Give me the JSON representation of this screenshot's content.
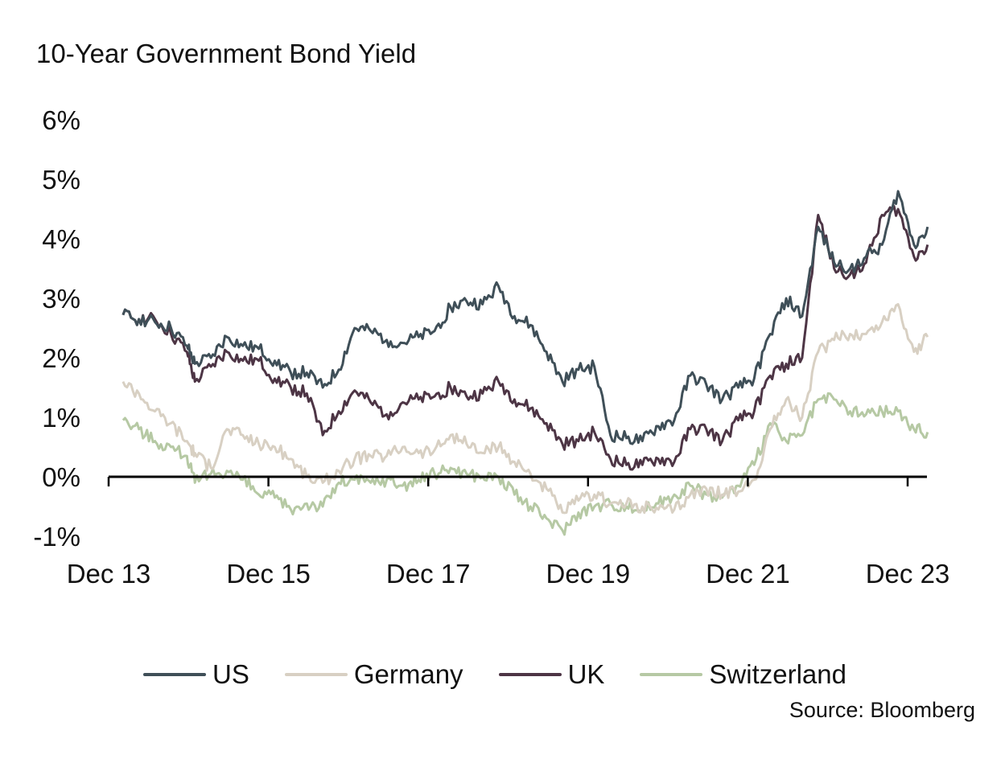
{
  "chart_data": {
    "type": "line",
    "title": "10-Year Government Bond Yield",
    "xlabel": "",
    "ylabel": "",
    "ylim": [
      -1,
      6
    ],
    "yticks": [
      "-1%",
      "0%",
      "1%",
      "2%",
      "3%",
      "4%",
      "5%",
      "6%"
    ],
    "ytick_values": [
      -1,
      0,
      1,
      2,
      3,
      4,
      5,
      6
    ],
    "xticks": [
      "Dec 13",
      "Dec 15",
      "Dec 17",
      "Dec 19",
      "Dec 21",
      "Dec 23"
    ],
    "xtick_values": [
      2013.92,
      2015.92,
      2017.92,
      2019.92,
      2021.92,
      2023.92
    ],
    "xlim": [
      2013.92,
      2024.17
    ],
    "grid": false,
    "legend_position": "bottom",
    "x": [
      2014.1,
      2014.3,
      2014.5,
      2014.7,
      2014.9,
      2015.0,
      2015.2,
      2015.4,
      2015.6,
      2015.8,
      2016.0,
      2016.2,
      2016.4,
      2016.6,
      2016.8,
      2017.0,
      2017.2,
      2017.4,
      2017.6,
      2017.8,
      2018.0,
      2018.2,
      2018.4,
      2018.6,
      2018.8,
      2019.0,
      2019.2,
      2019.4,
      2019.6,
      2019.8,
      2020.0,
      2020.2,
      2020.4,
      2020.6,
      2020.8,
      2021.0,
      2021.2,
      2021.4,
      2021.6,
      2021.8,
      2022.0,
      2022.2,
      2022.4,
      2022.6,
      2022.8,
      2023.0,
      2023.2,
      2023.4,
      2023.6,
      2023.8,
      2024.0,
      2024.17
    ],
    "series": [
      {
        "name": "US",
        "color": "#3f4f58",
        "values": [
          2.72,
          2.65,
          2.6,
          2.5,
          2.2,
          1.9,
          2.0,
          2.35,
          2.2,
          2.15,
          1.95,
          1.75,
          1.75,
          1.5,
          1.8,
          2.5,
          2.45,
          2.3,
          2.25,
          2.35,
          2.45,
          2.85,
          2.95,
          2.9,
          3.2,
          2.7,
          2.55,
          2.1,
          1.6,
          1.8,
          1.85,
          0.7,
          0.65,
          0.6,
          0.85,
          0.95,
          1.7,
          1.55,
          1.3,
          1.5,
          1.65,
          2.4,
          3.0,
          2.7,
          4.2,
          3.6,
          3.5,
          3.7,
          3.9,
          4.8,
          3.9,
          4.2
        ]
      },
      {
        "name": "Germany",
        "color": "#d8d0c3",
        "values": [
          1.6,
          1.4,
          1.1,
          0.9,
          0.6,
          0.4,
          0.15,
          0.8,
          0.7,
          0.55,
          0.5,
          0.3,
          0.0,
          -0.1,
          0.1,
          0.3,
          0.35,
          0.35,
          0.5,
          0.4,
          0.45,
          0.7,
          0.55,
          0.4,
          0.5,
          0.25,
          0.05,
          -0.2,
          -0.6,
          -0.4,
          -0.3,
          -0.45,
          -0.45,
          -0.5,
          -0.55,
          -0.55,
          -0.3,
          -0.2,
          -0.3,
          -0.25,
          -0.05,
          0.8,
          1.3,
          1.0,
          2.1,
          2.3,
          2.4,
          2.4,
          2.6,
          2.9,
          2.1,
          2.35
        ]
      },
      {
        "name": "UK",
        "color": "#4d3545",
        "values": [
          2.72,
          2.65,
          2.65,
          2.4,
          2.1,
          1.6,
          1.85,
          2.1,
          1.95,
          1.95,
          1.65,
          1.5,
          1.4,
          0.7,
          1.1,
          1.45,
          1.25,
          1.05,
          1.25,
          1.3,
          1.35,
          1.5,
          1.35,
          1.4,
          1.6,
          1.3,
          1.15,
          0.9,
          0.55,
          0.6,
          0.75,
          0.3,
          0.2,
          0.2,
          0.3,
          0.25,
          0.8,
          0.8,
          0.6,
          0.95,
          1.1,
          1.7,
          1.9,
          2.0,
          4.4,
          3.5,
          3.4,
          3.6,
          4.4,
          4.5,
          3.7,
          3.9
        ]
      },
      {
        "name": "Switzerland",
        "color": "#b6c9a4",
        "values": [
          0.95,
          0.8,
          0.6,
          0.5,
          0.35,
          -0.1,
          0.05,
          0.1,
          -0.05,
          -0.3,
          -0.35,
          -0.55,
          -0.45,
          -0.5,
          -0.1,
          -0.05,
          -0.1,
          -0.05,
          -0.15,
          -0.05,
          0.05,
          0.15,
          0.05,
          0.0,
          0.0,
          -0.3,
          -0.5,
          -0.7,
          -0.9,
          -0.6,
          -0.5,
          -0.45,
          -0.5,
          -0.55,
          -0.45,
          -0.3,
          -0.15,
          -0.3,
          -0.35,
          -0.15,
          0.2,
          0.9,
          0.6,
          0.7,
          1.3,
          1.3,
          1.1,
          1.05,
          1.1,
          1.1,
          0.8,
          0.75
        ]
      }
    ]
  },
  "source": "Source: Bloomberg"
}
